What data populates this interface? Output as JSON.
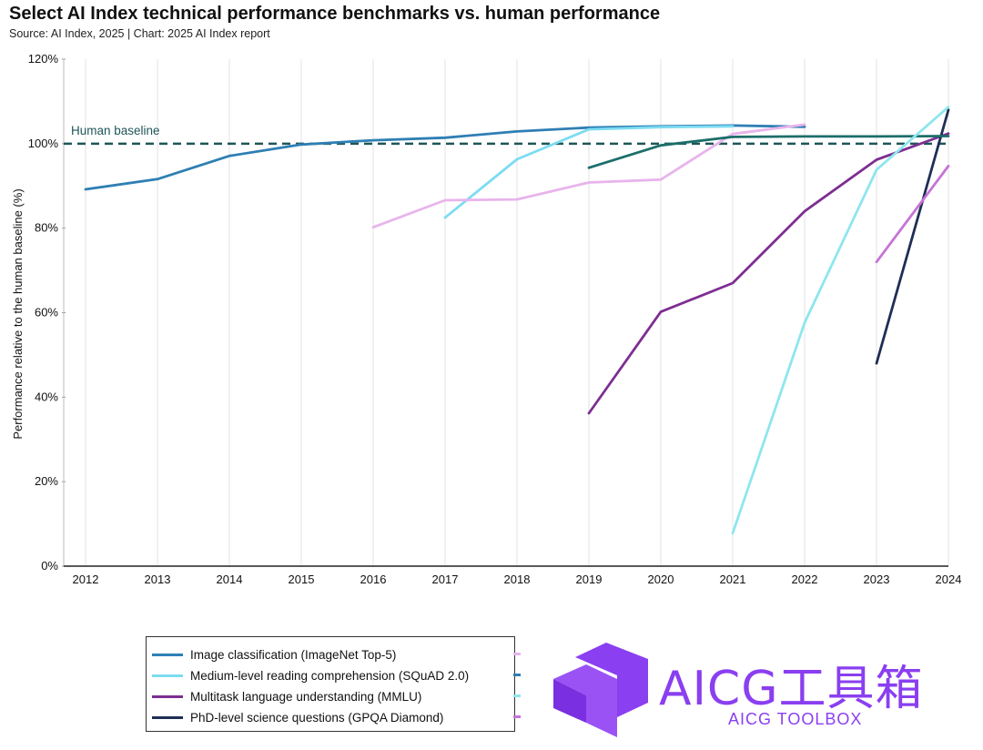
{
  "header": {
    "title": "Select AI Index technical performance benchmarks vs. human performance",
    "subtitle": "Source: AI Index, 2025 | Chart: 2025 AI Index report"
  },
  "chart_data": {
    "type": "line",
    "ylabel": "Performance relative to the human baseline (%)",
    "xlabel": "",
    "x_ticks": [
      "2012",
      "2013",
      "2014",
      "2015",
      "2016",
      "2017",
      "2018",
      "2019",
      "2020",
      "2021",
      "2022",
      "2023",
      "2024"
    ],
    "xlim": [
      2012,
      2024
    ],
    "ylim": [
      0,
      120
    ],
    "y_ticks": [
      0,
      20,
      40,
      60,
      80,
      100,
      120
    ],
    "y_tick_labels": [
      "0%",
      "20%",
      "40%",
      "60%",
      "80%",
      "100%",
      "120%"
    ],
    "grid": "vertical",
    "baseline": {
      "label": "Human baseline",
      "value": 100,
      "color": "#1f5557"
    },
    "series": [
      {
        "name": "Image classification (ImageNet Top-5)",
        "color": "#2e7fb4",
        "points": [
          [
            2012,
            89.2
          ],
          [
            2013,
            91.6
          ],
          [
            2014,
            97.1
          ],
          [
            2015,
            99.8
          ],
          [
            2016,
            100.8
          ],
          [
            2017,
            101.4
          ],
          [
            2018,
            102.9
          ],
          [
            2019,
            103.8
          ],
          [
            2020,
            104.1
          ],
          [
            2021,
            104.3
          ],
          [
            2022,
            104.0
          ]
        ]
      },
      {
        "name": "Medium-level reading comprehension (SQuAD 2.0)",
        "color": "#7ddcf2",
        "points": [
          [
            2017,
            82.5
          ],
          [
            2018,
            96.3
          ],
          [
            2019,
            103.4
          ],
          [
            2020,
            103.9
          ],
          [
            2021,
            104.1
          ]
        ]
      },
      {
        "name": "Multitask language understanding (MMLU)",
        "color": "#7d2e92",
        "points": [
          [
            2019,
            36.2
          ],
          [
            2020,
            60.2
          ],
          [
            2021,
            67.0
          ],
          [
            2022,
            84.0
          ],
          [
            2023,
            96.2
          ],
          [
            2024,
            102.4
          ]
        ]
      },
      {
        "name": "PhD-level science questions (GPQA Diamond)",
        "color": "#1e2e55",
        "points": [
          [
            2023,
            48.0
          ],
          [
            2024,
            108.0
          ]
        ]
      },
      {
        "name": "",
        "color": "#e8b4ec",
        "points": [
          [
            2016,
            80.2
          ],
          [
            2017,
            86.6
          ],
          [
            2018,
            86.8
          ],
          [
            2019,
            90.8
          ],
          [
            2020,
            91.5
          ],
          [
            2021,
            102.3
          ],
          [
            2022,
            104.5
          ]
        ]
      },
      {
        "name": "",
        "color": "#1c6e6a",
        "points": [
          [
            2019,
            94.3
          ],
          [
            2020,
            99.6
          ],
          [
            2021,
            101.6
          ],
          [
            2022,
            101.7
          ],
          [
            2023,
            101.7
          ],
          [
            2024,
            101.8
          ]
        ]
      },
      {
        "name": "",
        "color": "#8ee6ee",
        "points": [
          [
            2021,
            7.8
          ],
          [
            2022,
            57.6
          ],
          [
            2023,
            93.8
          ],
          [
            2024,
            108.7
          ]
        ]
      },
      {
        "name": "",
        "color": "#c674d6",
        "points": [
          [
            2023,
            72.0
          ],
          [
            2024,
            94.7
          ]
        ]
      }
    ],
    "legend": {
      "placement": "bottom",
      "entries": [
        {
          "label": "Image classification (ImageNet Top-5)",
          "color": "#2e7fb4",
          "edge_color": "#e8b4ec"
        },
        {
          "label": "Medium-level reading comprehension (SQuAD 2.0)",
          "color": "#7ddcf2",
          "edge_color": "#2e7fb4"
        },
        {
          "label": "Multitask language understanding (MMLU)",
          "color": "#7d2e92",
          "edge_color": "#8ee6ee"
        },
        {
          "label": "PhD-level science questions (GPQA Diamond)",
          "color": "#1e2e55",
          "edge_color": "#c674d6"
        }
      ]
    }
  },
  "watermark": {
    "text": "AICG工具箱",
    "subtext": "AICG TOOLBOX",
    "color": "#8a3ff0",
    "icon": "aicg-logo-icon"
  }
}
